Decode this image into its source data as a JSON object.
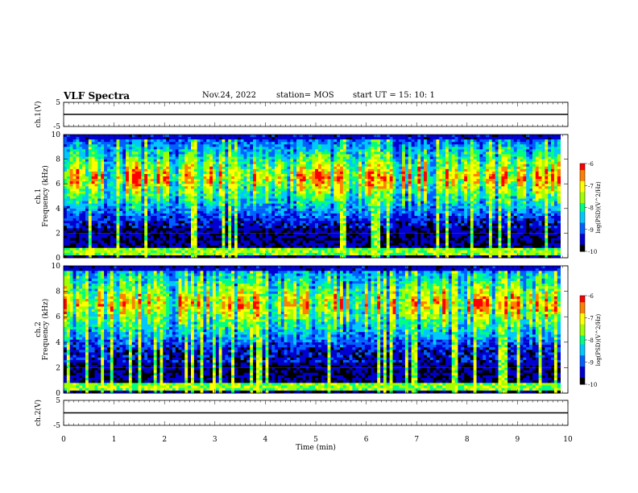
{
  "header": {
    "title": "VLF Spectra",
    "date": "Nov.24, 2022",
    "station": "station= MOS",
    "start_ut": "start UT =   15: 10: 1"
  },
  "colors": {
    "colormap": [
      "#000000",
      "#0000d0",
      "#0060ff",
      "#00c8ff",
      "#00ff80",
      "#a0ff00",
      "#ffff00",
      "#ff8000",
      "#ff0000",
      "#ffffff"
    ],
    "grid_line": "#c8c8c8",
    "axis": "#000000"
  },
  "chart_data": [
    {
      "type": "line",
      "name": "waveform-ch1",
      "ylabel": "ch.1(V)",
      "ylim": [
        -5,
        5
      ],
      "yticks": [
        "5",
        "-5"
      ],
      "x": [
        0,
        10
      ],
      "y": [
        0,
        0
      ]
    },
    {
      "type": "heatmap",
      "name": "spectrogram-ch1",
      "ylabel": "ch.1 Frequency (kHz)",
      "ylim": [
        0,
        10
      ],
      "yticks": [
        "0",
        "2",
        "4",
        "6",
        "8",
        "10"
      ],
      "xlim": [
        0,
        9.85
      ],
      "band_center_khz": 6.5,
      "lowfreq_band_khz": [
        0.2,
        0.8
      ],
      "colorbar": {
        "label": "log(PSD)(V^2/Hz)",
        "range": [
          -10,
          -6
        ],
        "ticks": [
          "-6",
          "-7",
          "-8",
          "-9",
          "-10"
        ]
      }
    },
    {
      "type": "heatmap",
      "name": "spectrogram-ch2",
      "ylabel": "ch.2 Frequency (kHz)",
      "ylim": [
        0,
        10
      ],
      "yticks": [
        "0",
        "2",
        "4",
        "6",
        "8",
        "10"
      ],
      "xlim": [
        0,
        9.85
      ],
      "band_center_khz": 7.0,
      "lowfreq_band_khz": [
        0.2,
        0.8
      ],
      "colorbar": {
        "label": "log(PSD)(V^2/Hz)",
        "range": [
          -10,
          -6
        ],
        "ticks": [
          "-6",
          "-7",
          "-8",
          "-9",
          "-10"
        ]
      }
    },
    {
      "type": "line",
      "name": "waveform-ch2",
      "ylabel": "ch.2(V)",
      "ylim": [
        -5,
        5
      ],
      "yticks": [
        "5",
        "-5"
      ],
      "x": [
        0,
        10
      ],
      "y": [
        0,
        0
      ]
    }
  ],
  "x_axis": {
    "label": "Time (min)",
    "xlim": [
      0,
      10
    ],
    "ticks": [
      "0",
      "1",
      "2",
      "3",
      "4",
      "5",
      "6",
      "7",
      "8",
      "9",
      "10"
    ]
  }
}
